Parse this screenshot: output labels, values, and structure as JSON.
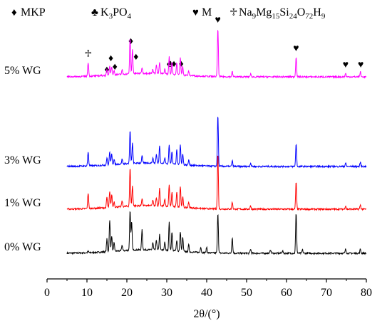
{
  "chart_data": {
    "type": "line",
    "title": "",
    "xlabel": "2θ/(°)",
    "ylabel": "",
    "xlim": [
      0,
      80
    ],
    "xticks": [
      0,
      10,
      20,
      30,
      40,
      50,
      60,
      70,
      80
    ],
    "grid": false,
    "legend": {
      "placement": "top",
      "entries": [
        {
          "symbol": "♦",
          "label": "MKP",
          "sub": []
        },
        {
          "symbol": "♣",
          "label": "K3PO4",
          "parts": [
            [
              "K",
              ""
            ],
            [
              "3",
              "sub"
            ],
            [
              "PO",
              ""
            ],
            [
              "4",
              "sub"
            ]
          ]
        },
        {
          "symbol": "♥",
          "label": "M",
          "parts": [
            [
              "M",
              ""
            ]
          ]
        },
        {
          "symbol": "♱",
          "label": "Na9Mg15Si24O72H9",
          "parts": [
            [
              "Na",
              ""
            ],
            [
              "9",
              "sub"
            ],
            [
              "Mg",
              ""
            ],
            [
              "15",
              "sub"
            ],
            [
              "Si",
              ""
            ],
            [
              "24",
              "sub"
            ],
            [
              "O",
              ""
            ],
            [
              "72",
              "sub"
            ],
            [
              "H",
              ""
            ],
            [
              "9",
              "sub"
            ]
          ]
        }
      ]
    },
    "x_range_data": [
      5,
      80
    ],
    "series": [
      {
        "name": "0% WG",
        "color": "#000000",
        "baseline": 0,
        "peaks": [
          [
            10.3,
            2
          ],
          [
            15.0,
            18
          ],
          [
            15.7,
            44
          ],
          [
            16.2,
            22
          ],
          [
            16.8,
            12
          ],
          [
            18.8,
            8
          ],
          [
            20.8,
            57
          ],
          [
            21.2,
            40
          ],
          [
            23.8,
            28
          ],
          [
            26.5,
            10
          ],
          [
            27.4,
            14
          ],
          [
            28.2,
            22
          ],
          [
            29.5,
            12
          ],
          [
            30.6,
            40
          ],
          [
            31.3,
            27
          ],
          [
            32.5,
            16
          ],
          [
            33.4,
            28
          ],
          [
            34.0,
            20
          ],
          [
            35.5,
            10
          ],
          [
            38.5,
            8
          ],
          [
            40.0,
            8
          ],
          [
            42.8,
            57
          ],
          [
            46.4,
            22
          ],
          [
            51.0,
            6
          ],
          [
            56.0,
            5
          ],
          [
            59.0,
            4
          ],
          [
            62.4,
            57
          ],
          [
            64.0,
            5
          ],
          [
            74.8,
            6
          ],
          [
            78.5,
            6
          ]
        ]
      },
      {
        "name": "1% WG",
        "color": "#ff0000",
        "baseline": 0,
        "peaks": [
          [
            10.3,
            22
          ],
          [
            15.0,
            15
          ],
          [
            15.7,
            22
          ],
          [
            16.2,
            18
          ],
          [
            16.8,
            8
          ],
          [
            18.8,
            8
          ],
          [
            20.8,
            54
          ],
          [
            21.4,
            28
          ],
          [
            23.8,
            10
          ],
          [
            26.5,
            8
          ],
          [
            27.4,
            12
          ],
          [
            28.2,
            25
          ],
          [
            29.5,
            10
          ],
          [
            30.6,
            30
          ],
          [
            31.3,
            20
          ],
          [
            32.5,
            22
          ],
          [
            33.4,
            30
          ],
          [
            34.0,
            15
          ],
          [
            35.5,
            8
          ],
          [
            42.8,
            78
          ],
          [
            46.4,
            10
          ],
          [
            51.0,
            5
          ],
          [
            62.4,
            38
          ],
          [
            74.8,
            5
          ],
          [
            78.5,
            6
          ]
        ]
      },
      {
        "name": "3% WG",
        "color": "#0000ff",
        "baseline": 0,
        "peaks": [
          [
            10.3,
            20
          ],
          [
            15.0,
            10
          ],
          [
            15.7,
            18
          ],
          [
            16.2,
            15
          ],
          [
            16.8,
            7
          ],
          [
            18.8,
            7
          ],
          [
            20.8,
            46
          ],
          [
            21.4,
            28
          ],
          [
            23.8,
            10
          ],
          [
            26.5,
            7
          ],
          [
            27.4,
            12
          ],
          [
            28.2,
            25
          ],
          [
            29.5,
            8
          ],
          [
            30.6,
            26
          ],
          [
            31.3,
            18
          ],
          [
            32.5,
            20
          ],
          [
            33.4,
            28
          ],
          [
            34.0,
            15
          ],
          [
            35.5,
            7
          ],
          [
            42.8,
            72
          ],
          [
            46.4,
            8
          ],
          [
            51.0,
            5
          ],
          [
            62.4,
            32
          ],
          [
            74.8,
            5
          ],
          [
            78.5,
            6
          ]
        ]
      },
      {
        "name": "5% WG",
        "color": "#ff00ff",
        "baseline": 0,
        "peaks": [
          [
            10.3,
            20
          ],
          [
            15.0,
            8
          ],
          [
            15.7,
            14
          ],
          [
            16.2,
            12
          ],
          [
            16.8,
            6
          ],
          [
            18.8,
            6
          ],
          [
            20.8,
            50
          ],
          [
            21.4,
            34
          ],
          [
            23.8,
            8
          ],
          [
            26.5,
            6
          ],
          [
            27.4,
            12
          ],
          [
            28.2,
            16
          ],
          [
            29.5,
            7
          ],
          [
            30.6,
            24
          ],
          [
            31.3,
            18
          ],
          [
            32.5,
            17
          ],
          [
            33.4,
            24
          ],
          [
            34.0,
            12
          ],
          [
            35.5,
            6
          ],
          [
            42.8,
            68
          ],
          [
            46.4,
            7
          ],
          [
            51.0,
            4
          ],
          [
            62.4,
            28
          ],
          [
            74.8,
            5
          ],
          [
            78.5,
            7
          ]
        ]
      }
    ],
    "annotations": [
      {
        "symbol": "♱",
        "x": 10.3
      },
      {
        "symbol": "♦",
        "x": 15.0
      },
      {
        "symbol": "♦",
        "x": 16.0
      },
      {
        "symbol": "♦",
        "x": 17.0
      },
      {
        "symbol": "♦",
        "x": 21.0
      },
      {
        "symbol": "♦",
        "x": 22.3
      },
      {
        "symbol": "♣",
        "x": 30.8
      },
      {
        "symbol": "♦",
        "x": 31.8
      },
      {
        "symbol": "♦",
        "x": 33.6
      },
      {
        "symbol": "♥",
        "x": 42.8
      },
      {
        "symbol": "♥",
        "x": 62.4
      },
      {
        "symbol": "♥",
        "x": 74.8
      },
      {
        "symbol": "♥",
        "x": 78.6
      }
    ]
  }
}
